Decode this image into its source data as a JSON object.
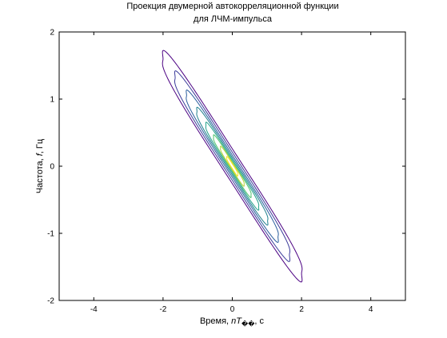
{
  "chart_data": {
    "type": "contour",
    "title": "Проекция двумерной автокорреляционной функции",
    "subtitle": "для ЛЧМ-импульса",
    "xlabel_prefix": "Время, ",
    "xlabel_var": "nT",
    "xlabel_sub": "��",
    "xlabel_suffix": ", с",
    "ylabel_prefix": "Частота, ",
    "ylabel_var": "f",
    "ylabel_suffix": ", Гц",
    "xlim": [
      -5,
      5
    ],
    "ylim": [
      -2,
      2
    ],
    "xticks": [
      -4,
      -2,
      0,
      2,
      4
    ],
    "yticks": [
      -2,
      -1,
      0,
      1,
      2
    ],
    "grid": false,
    "ridge": {
      "slope": -0.8
    },
    "levels": [
      {
        "half_length": 2.0,
        "half_width": 0.26,
        "color": "#4b0082"
      },
      {
        "half_length": 1.65,
        "half_width": 0.21,
        "color": "#3b3b9a"
      },
      {
        "half_length": 1.32,
        "half_width": 0.165,
        "color": "#2a5d9e"
      },
      {
        "half_length": 1.02,
        "half_width": 0.13,
        "color": "#1f7f8e"
      },
      {
        "half_length": 0.76,
        "half_width": 0.1,
        "color": "#21a08a"
      },
      {
        "half_length": 0.54,
        "half_width": 0.075,
        "color": "#4cc26c"
      },
      {
        "half_length": 0.34,
        "half_width": 0.055,
        "color": "#b5d33a"
      },
      {
        "half_length": 0.16,
        "half_width": 0.035,
        "color": "#f5e52a"
      }
    ]
  }
}
